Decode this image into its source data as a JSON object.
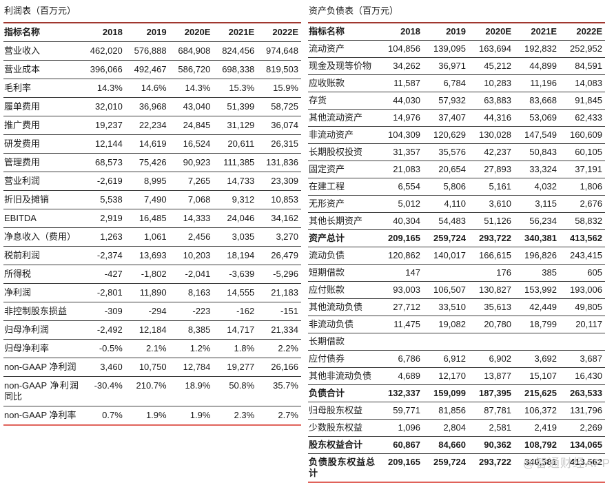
{
  "watermark": "@智通财经APP",
  "colors": {
    "top_rule": "#a0372f",
    "row_rule": "#3a3a3a",
    "bottom_rule": "#e0625a",
    "text": "#1a1a1a",
    "watermark": "#c8c8c8"
  },
  "income_statement": {
    "title": "利润表（百万元）",
    "columns": [
      "指标名称",
      "2018",
      "2019",
      "2020E",
      "2021E",
      "2022E"
    ],
    "rows": [
      {
        "label": "营业收入",
        "values": [
          "462,020",
          "576,888",
          "684,908",
          "824,456",
          "974,648"
        ]
      },
      {
        "label": "营业成本",
        "values": [
          "396,066",
          "492,467",
          "586,720",
          "698,338",
          "819,503"
        ]
      },
      {
        "label": "毛利率",
        "values": [
          "14.3%",
          "14.6%",
          "14.3%",
          "15.3%",
          "15.9%"
        ]
      },
      {
        "label": "履单费用",
        "values": [
          "32,010",
          "36,968",
          "43,040",
          "51,399",
          "58,725"
        ]
      },
      {
        "label": "推广费用",
        "values": [
          "19,237",
          "22,234",
          "24,845",
          "31,129",
          "36,074"
        ]
      },
      {
        "label": "研发费用",
        "values": [
          "12,144",
          "14,619",
          "16,524",
          "20,611",
          "26,315"
        ]
      },
      {
        "label": "管理费用",
        "values": [
          "68,573",
          "75,426",
          "90,923",
          "111,385",
          "131,836"
        ]
      },
      {
        "label": "营业利润",
        "values": [
          "-2,619",
          "8,995",
          "7,265",
          "14,733",
          "23,309"
        ]
      },
      {
        "label": "折旧及摊销",
        "values": [
          "5,538",
          "7,490",
          "7,068",
          "9,312",
          "10,853"
        ]
      },
      {
        "label": "EBITDA",
        "values": [
          "2,919",
          "16,485",
          "14,333",
          "24,046",
          "34,162"
        ]
      },
      {
        "label": "净息收入（费用）",
        "values": [
          "1,263",
          "1,061",
          "2,456",
          "3,035",
          "3,270"
        ]
      },
      {
        "label": "税前利润",
        "values": [
          "-2,374",
          "13,693",
          "10,203",
          "18,194",
          "26,479"
        ]
      },
      {
        "label": "所得税",
        "values": [
          "-427",
          "-1,802",
          "-2,041",
          "-3,639",
          "-5,296"
        ]
      },
      {
        "label": "净利润",
        "values": [
          "-2,801",
          "11,890",
          "8,163",
          "14,555",
          "21,183"
        ]
      },
      {
        "label": "非控制股东损益",
        "values": [
          "-309",
          "-294",
          "-223",
          "-162",
          "-151"
        ]
      },
      {
        "label": "归母净利润",
        "values": [
          "-2,492",
          "12,184",
          "8,385",
          "14,717",
          "21,334"
        ]
      },
      {
        "label": "归母净利率",
        "values": [
          "-0.5%",
          "2.1%",
          "1.2%",
          "1.8%",
          "2.2%"
        ]
      },
      {
        "label": "non-GAAP 净利润",
        "values": [
          "3,460",
          "10,750",
          "12,784",
          "19,277",
          "26,166"
        ]
      },
      {
        "label": "non-GAAP 净利润同比",
        "values": [
          "-30.4%",
          "210.7%",
          "18.9%",
          "50.8%",
          "35.7%"
        ]
      },
      {
        "label": "non-GAAP 净利率",
        "values": [
          "0.7%",
          "1.9%",
          "1.9%",
          "2.3%",
          "2.7%"
        ]
      }
    ]
  },
  "balance_sheet": {
    "title": "资产负债表（百万元）",
    "columns": [
      "指标名称",
      "2018",
      "2019",
      "2020E",
      "2021E",
      "2022E"
    ],
    "rows": [
      {
        "label": "流动资产",
        "values": [
          "104,856",
          "139,095",
          "163,694",
          "192,832",
          "252,952"
        ]
      },
      {
        "label": "现金及现等价物",
        "values": [
          "34,262",
          "36,971",
          "45,212",
          "44,899",
          "84,591"
        ]
      },
      {
        "label": "应收账款",
        "values": [
          "11,587",
          "6,784",
          "10,283",
          "11,196",
          "14,083"
        ]
      },
      {
        "label": "存货",
        "values": [
          "44,030",
          "57,932",
          "63,883",
          "83,668",
          "91,845"
        ]
      },
      {
        "label": "其他流动资产",
        "values": [
          "14,976",
          "37,407",
          "44,316",
          "53,069",
          "62,433"
        ]
      },
      {
        "label": "非流动资产",
        "values": [
          "104,309",
          "120,629",
          "130,028",
          "147,549",
          "160,609"
        ]
      },
      {
        "label": "长期股权投资",
        "values": [
          "31,357",
          "35,576",
          "42,237",
          "50,843",
          "60,105"
        ]
      },
      {
        "label": "固定资产",
        "values": [
          "21,083",
          "20,654",
          "27,893",
          "33,324",
          "37,191"
        ]
      },
      {
        "label": "在建工程",
        "values": [
          "6,554",
          "5,806",
          "5,161",
          "4,032",
          "1,806"
        ]
      },
      {
        "label": "无形资产",
        "values": [
          "5,012",
          "4,110",
          "3,610",
          "3,115",
          "2,676"
        ]
      },
      {
        "label": "其他长期资产",
        "values": [
          "40,304",
          "54,483",
          "51,126",
          "56,234",
          "58,832"
        ]
      },
      {
        "label": "资产总计",
        "values": [
          "209,165",
          "259,724",
          "293,722",
          "340,381",
          "413,562"
        ],
        "bold": true
      },
      {
        "label": "流动负债",
        "values": [
          "120,862",
          "140,017",
          "166,615",
          "196,826",
          "243,415"
        ]
      },
      {
        "label": "短期借款",
        "values": [
          "147",
          "",
          "176",
          "385",
          "605"
        ]
      },
      {
        "label": "应付账款",
        "values": [
          "93,003",
          "106,507",
          "130,827",
          "153,992",
          "193,006"
        ]
      },
      {
        "label": "其他流动负债",
        "values": [
          "27,712",
          "33,510",
          "35,613",
          "42,449",
          "49,805"
        ]
      },
      {
        "label": "非流动负债",
        "values": [
          "11,475",
          "19,082",
          "20,780",
          "18,799",
          "20,117"
        ]
      },
      {
        "label": "长期借款",
        "values": [
          "",
          "",
          "",
          "",
          ""
        ]
      },
      {
        "label": "应付债券",
        "values": [
          "6,786",
          "6,912",
          "6,902",
          "3,692",
          "3,687"
        ]
      },
      {
        "label": "其他非流动负债",
        "values": [
          "4,689",
          "12,170",
          "13,877",
          "15,107",
          "16,430"
        ]
      },
      {
        "label": "负债合计",
        "values": [
          "132,337",
          "159,099",
          "187,395",
          "215,625",
          "263,533"
        ],
        "bold": true
      },
      {
        "label": "归母股东权益",
        "values": [
          "59,771",
          "81,856",
          "87,781",
          "106,372",
          "131,796"
        ]
      },
      {
        "label": "少数股东权益",
        "values": [
          "1,096",
          "2,804",
          "2,581",
          "2,419",
          "2,269"
        ]
      },
      {
        "label": "股东权益合计",
        "values": [
          "60,867",
          "84,660",
          "90,362",
          "108,792",
          "134,065"
        ],
        "bold": true
      },
      {
        "label": "负债股东权益总计",
        "values": [
          "209,165",
          "259,724",
          "293,722",
          "340,381",
          "413,562"
        ],
        "bold": true
      }
    ]
  }
}
